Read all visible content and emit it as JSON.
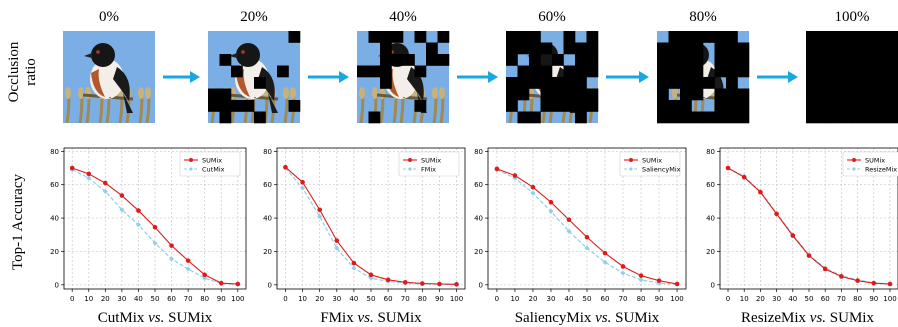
{
  "occlusion": {
    "row_label": "Occlusion ratio",
    "steps": [
      "0%",
      "20%",
      "40%",
      "60%",
      "80%",
      "100%"
    ],
    "sky_color": "#7aaee4",
    "arrow_color": "#1aa7e0"
  },
  "ylabel": "Top-1 Accuracy",
  "chart_data": [
    {
      "type": "line",
      "x": [
        0,
        10,
        20,
        30,
        40,
        50,
        60,
        70,
        80,
        90,
        100
      ],
      "ylim": [
        0,
        80
      ],
      "xticks": [
        "0",
        "10",
        "20",
        "30",
        "40",
        "50",
        "60",
        "70",
        "80",
        "90",
        "100"
      ],
      "yticks": [
        "0",
        "20",
        "40",
        "60",
        "80"
      ],
      "grid": true,
      "legend_position": "top-right",
      "caption_parts": [
        "CutMix ",
        "vs.",
        " SUMix"
      ],
      "series": [
        {
          "name": "SUMix",
          "color": "#e01a1a",
          "style": "solid",
          "values": [
            70,
            66.5,
            61,
            53.5,
            44.5,
            34.5,
            23.5,
            14.5,
            6,
            1,
            0.5
          ]
        },
        {
          "name": "CutMix",
          "color": "#8fd0e6",
          "style": "dashed",
          "values": [
            69,
            64,
            56,
            45,
            36,
            25,
            15.5,
            9.5,
            4,
            0.8,
            0.3
          ]
        }
      ]
    },
    {
      "type": "line",
      "x": [
        0,
        10,
        20,
        30,
        40,
        50,
        60,
        70,
        80,
        90,
        100
      ],
      "ylim": [
        0,
        80
      ],
      "xticks": [
        "0",
        "10",
        "20",
        "30",
        "40",
        "50",
        "60",
        "70",
        "80",
        "90",
        "100"
      ],
      "yticks": [
        "0",
        "20",
        "40",
        "60",
        "80"
      ],
      "grid": true,
      "legend_position": "top-right",
      "caption_parts": [
        "FMix ",
        "vs.",
        " SUMix"
      ],
      "series": [
        {
          "name": "SUMix",
          "color": "#e01a1a",
          "style": "solid",
          "values": [
            70.5,
            61.5,
            45,
            26.5,
            13,
            6,
            3,
            1.5,
            0.8,
            0.5,
            0.3
          ]
        },
        {
          "name": "FMix",
          "color": "#8fd0e6",
          "style": "dashed",
          "values": [
            70,
            58,
            41,
            22,
            10,
            4,
            2,
            1,
            0.5,
            0.3,
            0.2
          ]
        }
      ]
    },
    {
      "type": "line",
      "x": [
        0,
        10,
        20,
        30,
        40,
        50,
        60,
        70,
        80,
        90,
        100
      ],
      "ylim": [
        0,
        80
      ],
      "xticks": [
        "0",
        "10",
        "20",
        "30",
        "40",
        "50",
        "60",
        "70",
        "80",
        "90",
        "100"
      ],
      "yticks": [
        "0",
        "20",
        "40",
        "60",
        "80"
      ],
      "grid": true,
      "legend_position": "top-right",
      "caption_parts": [
        "SaliencyMix ",
        "vs.",
        " SUMix"
      ],
      "series": [
        {
          "name": "SUMix",
          "color": "#e01a1a",
          "style": "solid",
          "values": [
            69.5,
            65.5,
            58.5,
            49.5,
            39,
            28.5,
            19,
            11,
            5.5,
            2.5,
            0.5
          ]
        },
        {
          "name": "SaliencyMix",
          "color": "#8fd0e6",
          "style": "dashed",
          "values": [
            69,
            64,
            55,
            44,
            32,
            22,
            13.5,
            7,
            3,
            1,
            0.3
          ]
        }
      ]
    },
    {
      "type": "line",
      "x": [
        0,
        10,
        20,
        30,
        40,
        50,
        60,
        70,
        80,
        90,
        100
      ],
      "ylim": [
        0,
        80
      ],
      "xticks": [
        "0",
        "10",
        "20",
        "30",
        "40",
        "50",
        "60",
        "70",
        "80",
        "90",
        "100"
      ],
      "yticks": [
        "0",
        "20",
        "40",
        "60",
        "80"
      ],
      "grid": true,
      "legend_position": "top-right",
      "caption_parts": [
        "ResizeMix ",
        "vs.",
        " SUMix"
      ],
      "series": [
        {
          "name": "SUMix",
          "color": "#e01a1a",
          "style": "solid",
          "values": [
            70,
            64.5,
            55.5,
            42.5,
            29.5,
            17.5,
            9.5,
            5,
            2.5,
            1,
            0.5
          ]
        },
        {
          "name": "ResizeMix",
          "color": "#8fd0e6",
          "style": "dashed",
          "values": [
            70,
            65,
            56,
            43,
            30,
            18,
            10,
            5.5,
            3,
            1.2,
            0.5
          ]
        }
      ]
    }
  ]
}
